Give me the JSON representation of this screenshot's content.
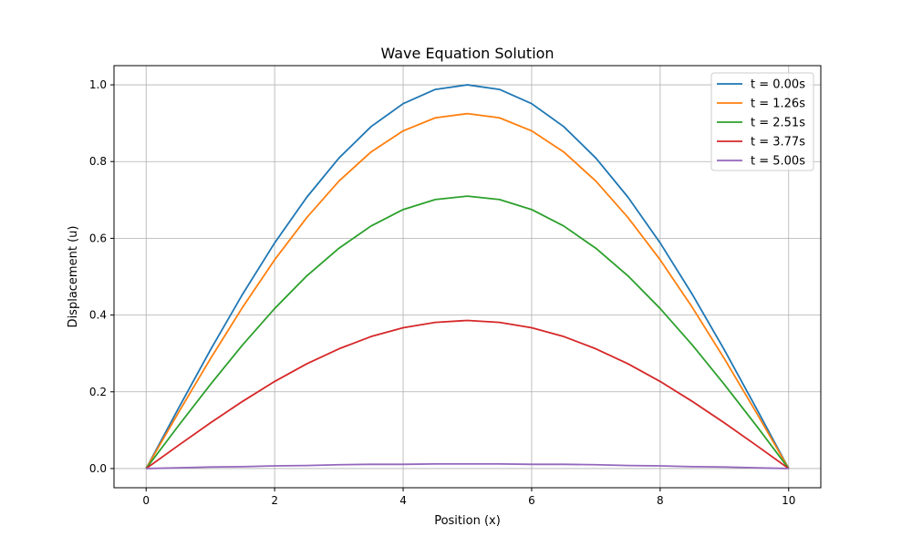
{
  "chart_data": {
    "type": "line",
    "title": "Wave Equation Solution",
    "xlabel": "Position (x)",
    "ylabel": "Displacement (u)",
    "xlim": [
      -0.5,
      10.5
    ],
    "ylim": [
      -0.05,
      1.05
    ],
    "xticks": [
      0,
      2,
      4,
      6,
      8,
      10
    ],
    "xtick_labels": [
      "0",
      "2",
      "4",
      "6",
      "8",
      "10"
    ],
    "yticks": [
      0.0,
      0.2,
      0.4,
      0.6,
      0.8,
      1.0
    ],
    "ytick_labels": [
      "0.0",
      "0.2",
      "0.4",
      "0.6",
      "0.8",
      "1.0"
    ],
    "grid": true,
    "legend_position": "top-right",
    "x": [
      0,
      0.5,
      1,
      1.5,
      2,
      2.5,
      3,
      3.5,
      4,
      4.5,
      5,
      5.5,
      6,
      6.5,
      7,
      7.5,
      8,
      8.5,
      9,
      9.5,
      10
    ],
    "series": [
      {
        "name": "t = 0.00s",
        "color": "#1f77b4",
        "values": [
          0,
          0.156,
          0.309,
          0.454,
          0.588,
          0.707,
          0.809,
          0.891,
          0.951,
          0.988,
          1.0,
          0.988,
          0.951,
          0.891,
          0.809,
          0.707,
          0.588,
          0.454,
          0.309,
          0.156,
          0
        ]
      },
      {
        "name": "t = 1.26s",
        "color": "#ff7f0e",
        "values": [
          0,
          0.145,
          0.286,
          0.42,
          0.544,
          0.654,
          0.749,
          0.825,
          0.88,
          0.914,
          0.925,
          0.914,
          0.88,
          0.825,
          0.749,
          0.654,
          0.544,
          0.42,
          0.286,
          0.145,
          0
        ]
      },
      {
        "name": "t = 2.51s",
        "color": "#2ca02c",
        "values": [
          0,
          0.111,
          0.219,
          0.322,
          0.417,
          0.502,
          0.574,
          0.632,
          0.675,
          0.701,
          0.71,
          0.701,
          0.675,
          0.632,
          0.574,
          0.502,
          0.417,
          0.322,
          0.219,
          0.111,
          0
        ]
      },
      {
        "name": "t = 3.77s",
        "color": "#d62728",
        "values": [
          0,
          0.06,
          0.119,
          0.175,
          0.227,
          0.273,
          0.312,
          0.344,
          0.367,
          0.381,
          0.386,
          0.381,
          0.367,
          0.344,
          0.312,
          0.273,
          0.227,
          0.175,
          0.119,
          0.06,
          0
        ]
      },
      {
        "name": "t = 5.00s",
        "color": "#9467bd",
        "values": [
          0,
          0.002,
          0.004,
          0.005,
          0.007,
          0.008,
          0.01,
          0.011,
          0.011,
          0.012,
          0.012,
          0.012,
          0.011,
          0.011,
          0.01,
          0.008,
          0.007,
          0.005,
          0.004,
          0.002,
          0
        ]
      }
    ]
  }
}
